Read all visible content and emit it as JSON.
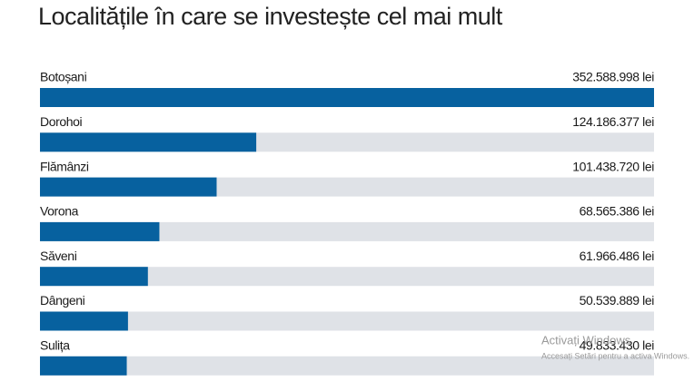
{
  "chart_data": {
    "type": "bar",
    "orientation": "horizontal",
    "title": "Localitățile în care se investește cel mai mult",
    "categories": [
      "Botoșani",
      "Dorohoi",
      "Flămânzi",
      "Vorona",
      "Săveni",
      "Dângeni",
      "Sulița"
    ],
    "values": [
      352588998,
      124186377,
      101438720,
      68565386,
      61966486,
      50539889,
      49833430
    ],
    "value_labels": [
      "352.588.998 lei",
      "124.186.377 lei",
      "101.438.720 lei",
      "68.565.386 lei",
      "61.966.486 lei",
      "50.539.889 lei",
      "49.833.430 lei"
    ],
    "color": "#07619f",
    "track_color": "#dfe2e7"
  },
  "watermark": {
    "title": "Activați Windows",
    "subtitle": "Accesați Setări pentru a activa Windows."
  }
}
